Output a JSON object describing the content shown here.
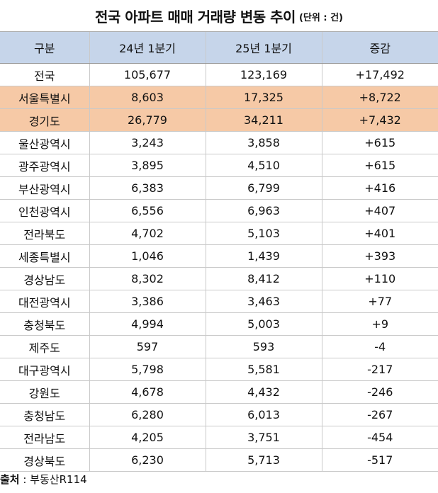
{
  "title": {
    "main": "전국 아파트 매매 거래량 변동 추이",
    "unit": "(단위 : 건)"
  },
  "table": {
    "headers": [
      "구분",
      "24년 1분기",
      "25년 1분기",
      "증감"
    ],
    "rows": [
      {
        "region": "전국",
        "q1_2024": "105,677",
        "q1_2025": "123,169",
        "change": "+17,492",
        "highlight": false
      },
      {
        "region": "서울특별시",
        "q1_2024": "8,603",
        "q1_2025": "17,325",
        "change": "+8,722",
        "highlight": true
      },
      {
        "region": "경기도",
        "q1_2024": "26,779",
        "q1_2025": "34,211",
        "change": "+7,432",
        "highlight": true
      },
      {
        "region": "울산광역시",
        "q1_2024": "3,243",
        "q1_2025": "3,858",
        "change": "+615",
        "highlight": false
      },
      {
        "region": "광주광역시",
        "q1_2024": "3,895",
        "q1_2025": "4,510",
        "change": "+615",
        "highlight": false
      },
      {
        "region": "부산광역시",
        "q1_2024": "6,383",
        "q1_2025": "6,799",
        "change": "+416",
        "highlight": false
      },
      {
        "region": "인천광역시",
        "q1_2024": "6,556",
        "q1_2025": "6,963",
        "change": "+407",
        "highlight": false
      },
      {
        "region": "전라북도",
        "q1_2024": "4,702",
        "q1_2025": "5,103",
        "change": "+401",
        "highlight": false
      },
      {
        "region": "세종특별시",
        "q1_2024": "1,046",
        "q1_2025": "1,439",
        "change": "+393",
        "highlight": false
      },
      {
        "region": "경상남도",
        "q1_2024": "8,302",
        "q1_2025": "8,412",
        "change": "+110",
        "highlight": false
      },
      {
        "region": "대전광역시",
        "q1_2024": "3,386",
        "q1_2025": "3,463",
        "change": "+77",
        "highlight": false
      },
      {
        "region": "충청북도",
        "q1_2024": "4,994",
        "q1_2025": "5,003",
        "change": "+9",
        "highlight": false
      },
      {
        "region": "제주도",
        "q1_2024": "597",
        "q1_2025": "593",
        "change": "-4",
        "highlight": false
      },
      {
        "region": "대구광역시",
        "q1_2024": "5,798",
        "q1_2025": "5,581",
        "change": "-217",
        "highlight": false
      },
      {
        "region": "강원도",
        "q1_2024": "4,678",
        "q1_2025": "4,432",
        "change": "-246",
        "highlight": false
      },
      {
        "region": "충청남도",
        "q1_2024": "6,280",
        "q1_2025": "6,013",
        "change": "-267",
        "highlight": false
      },
      {
        "region": "전라남도",
        "q1_2024": "4,205",
        "q1_2025": "3,751",
        "change": "-454",
        "highlight": false
      },
      {
        "region": "경상북도",
        "q1_2024": "6,230",
        "q1_2025": "5,713",
        "change": "-517",
        "highlight": false
      }
    ]
  },
  "source": {
    "label": "출처",
    "text": " : 부동산R114"
  },
  "colors": {
    "header_bg": "#c6d5ea",
    "highlight_bg": "#f6c9a6"
  }
}
